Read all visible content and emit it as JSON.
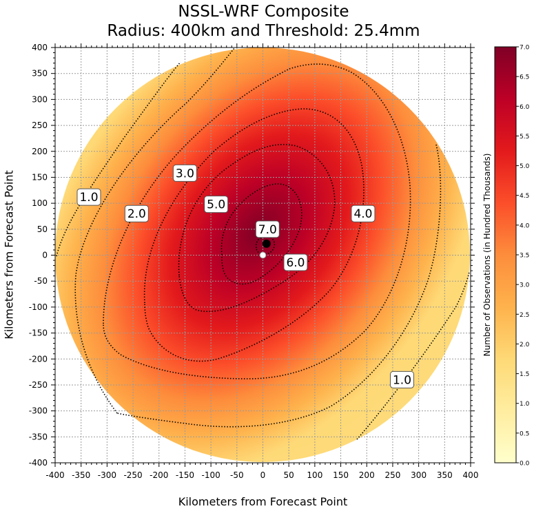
{
  "chart_data": {
    "type": "heatmap",
    "title": "NSSL-WRF Composite",
    "subtitle": "Radius: 400km and Threshold: 25.4mm",
    "xlabel": "Kilometers from Forecast Point",
    "ylabel": "Kilometers from Forecast Point",
    "colorbar_label": "Number of Observations (in Hundred Thousands)",
    "xlim": [
      -400,
      400
    ],
    "ylim": [
      -400,
      400
    ],
    "radius_km": 400,
    "threshold_mm": 25.4,
    "grid": true,
    "x_ticks": [
      "-400",
      "-350",
      "-300",
      "-250",
      "-200",
      "-150",
      "-100",
      "-50",
      "0",
      "50",
      "100",
      "150",
      "200",
      "250",
      "300",
      "350",
      "400"
    ],
    "y_ticks": [
      "400",
      "350",
      "300",
      "250",
      "200",
      "150",
      "100",
      "50",
      "0",
      "-50",
      "-100",
      "-150",
      "-200",
      "-250",
      "-300",
      "-350",
      "-400"
    ],
    "colorbar": {
      "range": [
        0,
        7
      ],
      "ticks": [
        "0.0",
        "0.5",
        "1.0",
        "1.5",
        "2.0",
        "2.5",
        "3.0",
        "3.5",
        "4.0",
        "4.5",
        "5.0",
        "5.5",
        "6.0",
        "6.5",
        "7.0"
      ],
      "colormap": [
        "#ffffcc",
        "#ffeda0",
        "#fed976",
        "#feb24c",
        "#fd8d3c",
        "#fc4e2a",
        "#e31a1c",
        "#bd0026",
        "#800026"
      ]
    },
    "field_max": {
      "x": 0,
      "y": 50,
      "value": 7.2
    },
    "contour_levels": [
      1.0,
      2.0,
      3.0,
      4.0,
      5.0,
      6.0,
      7.0
    ],
    "contour_labels": [
      {
        "text": "1.0",
        "x": -335,
        "y": 112
      },
      {
        "text": "1.0",
        "x": 268,
        "y": -240
      },
      {
        "text": "2.0",
        "x": -243,
        "y": 80
      },
      {
        "text": "3.0",
        "x": -150,
        "y": 158
      },
      {
        "text": "4.0",
        "x": 193,
        "y": 80
      },
      {
        "text": "5.0",
        "x": -90,
        "y": 98
      },
      {
        "text": "6.0",
        "x": 63,
        "y": -14
      },
      {
        "text": "7.0",
        "x": 9,
        "y": 50
      }
    ],
    "markers": [
      {
        "name": "forecast-point",
        "x": 0,
        "y": 0,
        "color": "#ffffff"
      },
      {
        "name": "maximum-point",
        "x": 7,
        "y": 22,
        "color": "#000000"
      }
    ]
  }
}
